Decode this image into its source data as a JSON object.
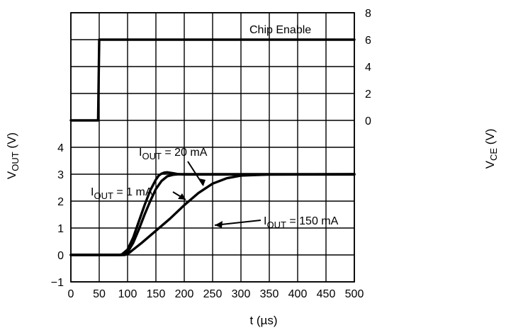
{
  "chart_data": {
    "type": "line",
    "title": "",
    "x": {
      "label": "t (µs)",
      "min": 0,
      "max": 500,
      "step": 50,
      "ticks": [
        "0",
        "50",
        "100",
        "150",
        "200",
        "250",
        "300",
        "350",
        "400",
        "450",
        "500"
      ]
    },
    "y_left": {
      "label_main": "V",
      "label_sub": "OUT",
      "label_unit": " (V)",
      "ticks": [
        "−1",
        "0",
        "1",
        "2",
        "3",
        "4"
      ]
    },
    "y_right": {
      "label_main": "V",
      "label_sub": "CE",
      "label_unit": " (V)",
      "ticks": [
        "0",
        "2",
        "4",
        "6",
        "8"
      ]
    },
    "grid": true,
    "series": [
      {
        "name": "Chip Enable",
        "axis": "right",
        "points": [
          [
            0,
            0
          ],
          [
            48,
            0
          ],
          [
            50,
            6
          ],
          [
            500,
            6
          ]
        ]
      },
      {
        "name": "IOUT = 1 mA",
        "axis": "left",
        "points": [
          [
            0,
            0
          ],
          [
            85,
            0
          ],
          [
            90,
            0.02
          ],
          [
            100,
            0.2
          ],
          [
            110,
            0.65
          ],
          [
            120,
            1.25
          ],
          [
            130,
            1.85
          ],
          [
            140,
            2.4
          ],
          [
            150,
            2.8
          ],
          [
            155,
            2.95
          ],
          [
            160,
            3.02
          ],
          [
            165,
            3.06
          ],
          [
            170,
            3.07
          ],
          [
            180,
            3.04
          ],
          [
            190,
            3.0
          ],
          [
            200,
            2.99
          ],
          [
            500,
            2.99
          ]
        ]
      },
      {
        "name": "IOUT = 20 mA",
        "axis": "left",
        "points": [
          [
            0,
            0
          ],
          [
            90,
            0
          ],
          [
            100,
            0.1
          ],
          [
            110,
            0.45
          ],
          [
            120,
            0.95
          ],
          [
            130,
            1.5
          ],
          [
            140,
            2.0
          ],
          [
            150,
            2.45
          ],
          [
            160,
            2.75
          ],
          [
            170,
            2.92
          ],
          [
            180,
            2.98
          ],
          [
            190,
            3.0
          ],
          [
            500,
            3.0
          ]
        ]
      },
      {
        "name": "IOUT = 150 mA",
        "axis": "left",
        "points": [
          [
            0,
            0
          ],
          [
            95,
            0
          ],
          [
            100,
            0.03
          ],
          [
            110,
            0.2
          ],
          [
            125,
            0.45
          ],
          [
            150,
            0.9
          ],
          [
            175,
            1.35
          ],
          [
            200,
            1.85
          ],
          [
            225,
            2.3
          ],
          [
            250,
            2.65
          ],
          [
            275,
            2.85
          ],
          [
            300,
            2.95
          ],
          [
            350,
            2.99
          ],
          [
            500,
            3.0
          ]
        ]
      }
    ],
    "annotations": [
      {
        "main": "Chip Enable",
        "sub": "",
        "rest": ""
      },
      {
        "main": "I",
        "sub": "OUT",
        "rest": " = 20 mA"
      },
      {
        "main": "I",
        "sub": "OUT",
        "rest": " = 1 mA"
      },
      {
        "main": "I",
        "sub": "OUT",
        "rest": " = 150 mA"
      }
    ]
  }
}
